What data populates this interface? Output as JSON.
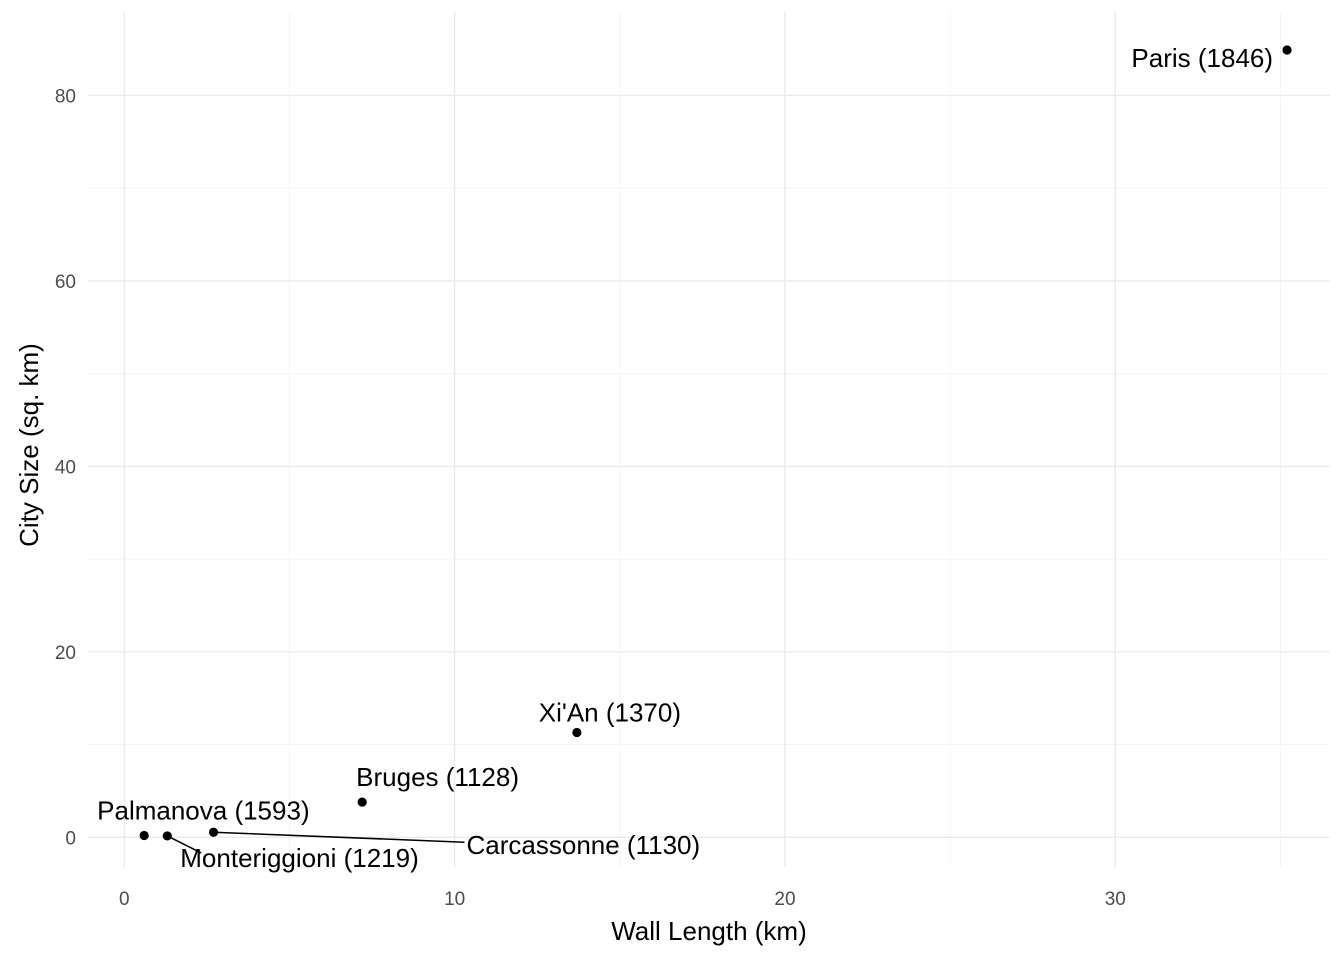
{
  "chart_data": {
    "type": "scatter",
    "xlabel": "Wall Length (km)",
    "ylabel": "City Size (sq. km)",
    "xlim": [
      -1.1,
      36.5
    ],
    "ylim": [
      -3.2,
      89.0
    ],
    "x_major_ticks": [
      0,
      10,
      20,
      30
    ],
    "x_minor_ticks": [
      5,
      15,
      25,
      35
    ],
    "y_major_ticks": [
      0,
      20,
      40,
      60,
      80
    ],
    "y_minor_ticks": [
      10,
      30,
      50,
      70
    ],
    "x_tick_labels": [
      "0",
      "10",
      "20",
      "30"
    ],
    "y_tick_labels": [
      "0",
      "20",
      "40",
      "60",
      "80"
    ],
    "grid": true,
    "colors": {
      "points": "#000000",
      "grid": "#ebebeb",
      "tick_text": "#4d4d4d"
    },
    "points": [
      {
        "label": "Paris (1846)",
        "x": 35.2,
        "y": 84.9
      },
      {
        "label": "Xi'An (1370)",
        "x": 13.7,
        "y": 11.3
      },
      {
        "label": "Bruges (1128)",
        "x": 7.2,
        "y": 3.8
      },
      {
        "label": "Palmanova (1593)",
        "x": 0.6,
        "y": 0.2
      },
      {
        "label": "Monteriggioni (1219)",
        "x": 1.3,
        "y": 0.15
      },
      {
        "label": "Carcassonne (1130)",
        "x": 2.7,
        "y": 0.55
      }
    ]
  }
}
